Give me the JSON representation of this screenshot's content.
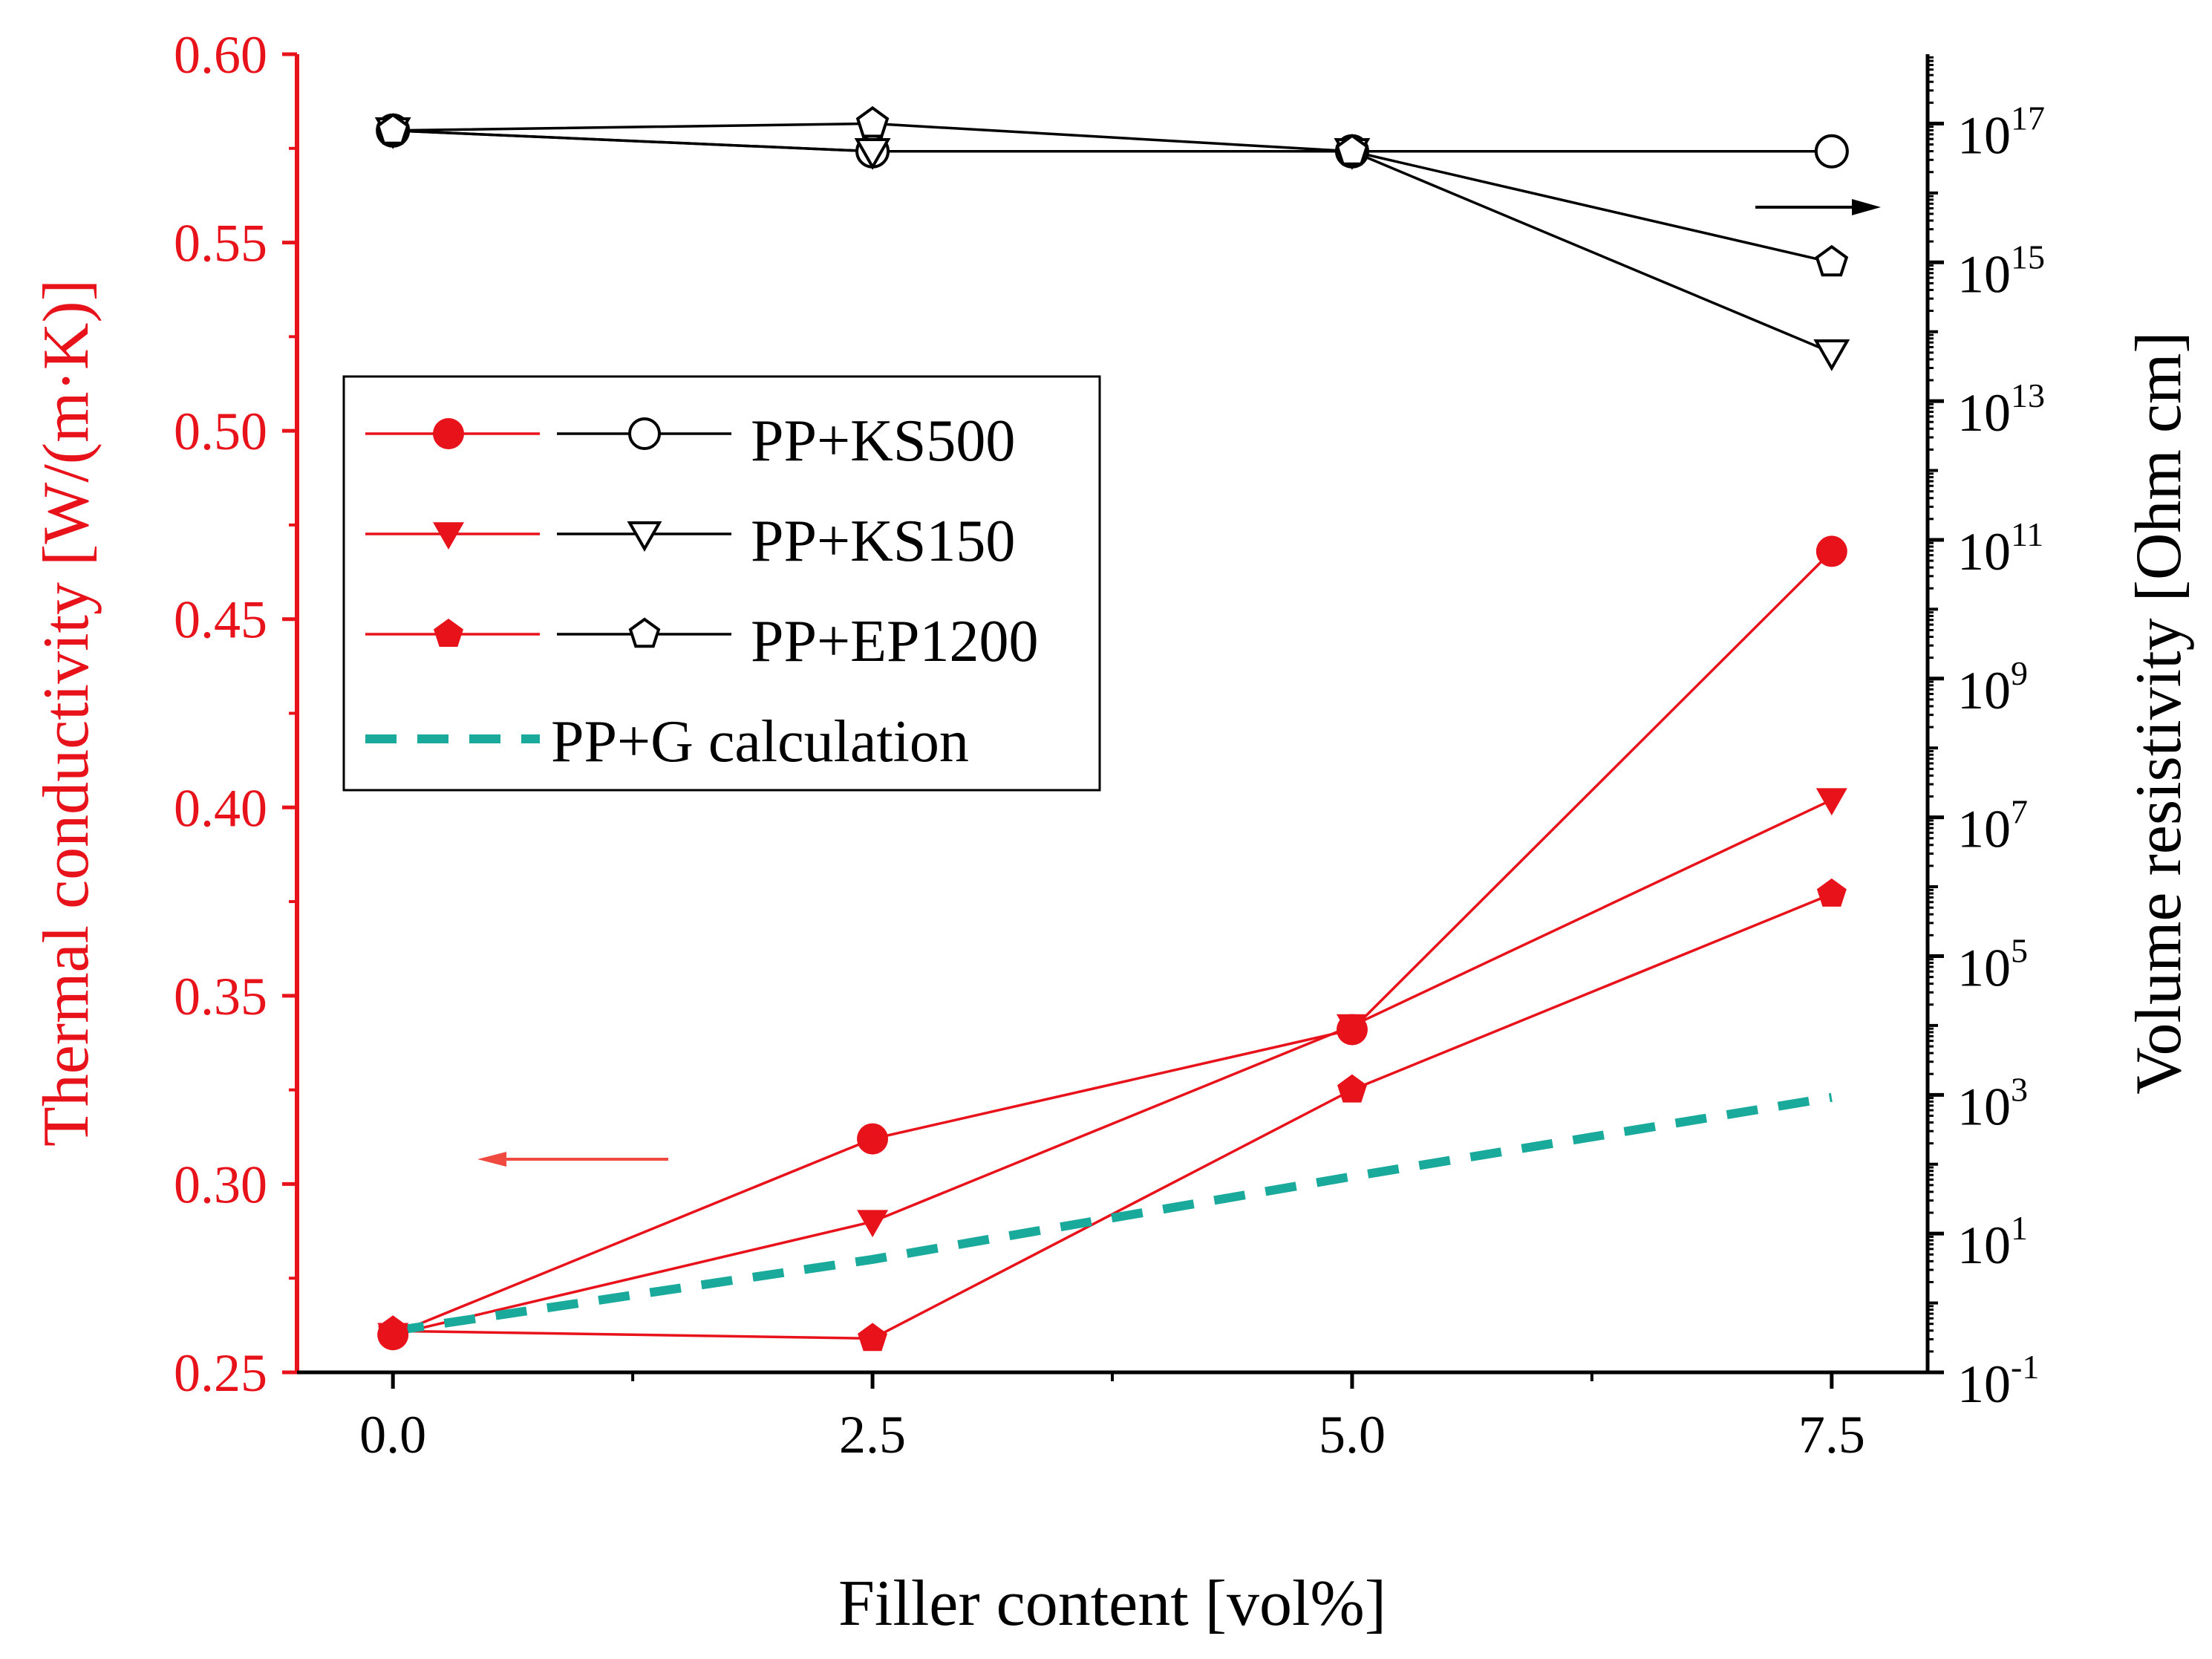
{
  "chart_data": {
    "type": "line",
    "x": [
      0.0,
      2.5,
      5.0,
      7.5
    ],
    "xlabel": "Filler content [vol%]",
    "xlim": [
      -0.5,
      8.0
    ],
    "xticks": [
      "0.0",
      "2.5",
      "5.0",
      "7.5"
    ],
    "ylabel_left": "Thermal conductivity [W/(m·K)]",
    "ylim_left": [
      0.25,
      0.6
    ],
    "yticks_left": [
      "0.25",
      "0.30",
      "0.35",
      "0.40",
      "0.45",
      "0.50",
      "0.55",
      "0.60"
    ],
    "ylabel_right": "Volume resistivity [Ohm cm]",
    "ylim_right_log10": [
      -1,
      18
    ],
    "yticks_right": [
      {
        "base": "10",
        "exp": "-1",
        "value": -1
      },
      {
        "base": "10",
        "exp": "1",
        "value": 1
      },
      {
        "base": "10",
        "exp": "3",
        "value": 3
      },
      {
        "base": "10",
        "exp": "5",
        "value": 5
      },
      {
        "base": "10",
        "exp": "7",
        "value": 7
      },
      {
        "base": "10",
        "exp": "9",
        "value": 9
      },
      {
        "base": "10",
        "exp": "11",
        "value": 11
      },
      {
        "base": "10",
        "exp": "13",
        "value": 13
      },
      {
        "base": "10",
        "exp": "15",
        "value": 15
      },
      {
        "base": "10",
        "exp": "17",
        "value": 17
      }
    ],
    "series": [
      {
        "name": "PP+KS500",
        "axis": "left",
        "marker": "circle",
        "filled": true,
        "color": "#e8121b",
        "values": [
          0.26,
          0.312,
          0.341,
          0.468
        ]
      },
      {
        "name": "PP+KS150",
        "axis": "left",
        "marker": "triangle-down",
        "filled": true,
        "color": "#e8121b",
        "values": [
          0.26,
          0.29,
          0.342,
          0.402
        ]
      },
      {
        "name": "PP+EP1200",
        "axis": "left",
        "marker": "pentagon",
        "filled": true,
        "color": "#e8121b",
        "values": [
          0.261,
          0.259,
          0.325,
          0.377
        ]
      },
      {
        "name": "PP+KS500",
        "axis": "right",
        "marker": "circle",
        "filled": false,
        "color": "#000000",
        "values_log10": [
          16.9,
          16.6,
          16.6,
          16.6
        ]
      },
      {
        "name": "PP+KS150",
        "axis": "right",
        "marker": "triangle-down",
        "filled": false,
        "color": "#000000",
        "values_log10": [
          16.9,
          16.6,
          16.6,
          13.7
        ]
      },
      {
        "name": "PP+EP1200",
        "axis": "right",
        "marker": "pentagon",
        "filled": false,
        "color": "#000000",
        "values_log10": [
          16.9,
          17.0,
          16.6,
          15.0
        ]
      },
      {
        "name": "PP+G calculation",
        "axis": "left",
        "style": "dashed",
        "color": "#1aaa9c",
        "values": [
          0.261,
          0.28,
          0.302,
          0.323
        ]
      }
    ],
    "legend": {
      "placement": "upper-left",
      "entries": [
        "PP+KS500",
        "PP+KS150",
        "PP+EP1200",
        "PP+G calculation"
      ]
    }
  }
}
